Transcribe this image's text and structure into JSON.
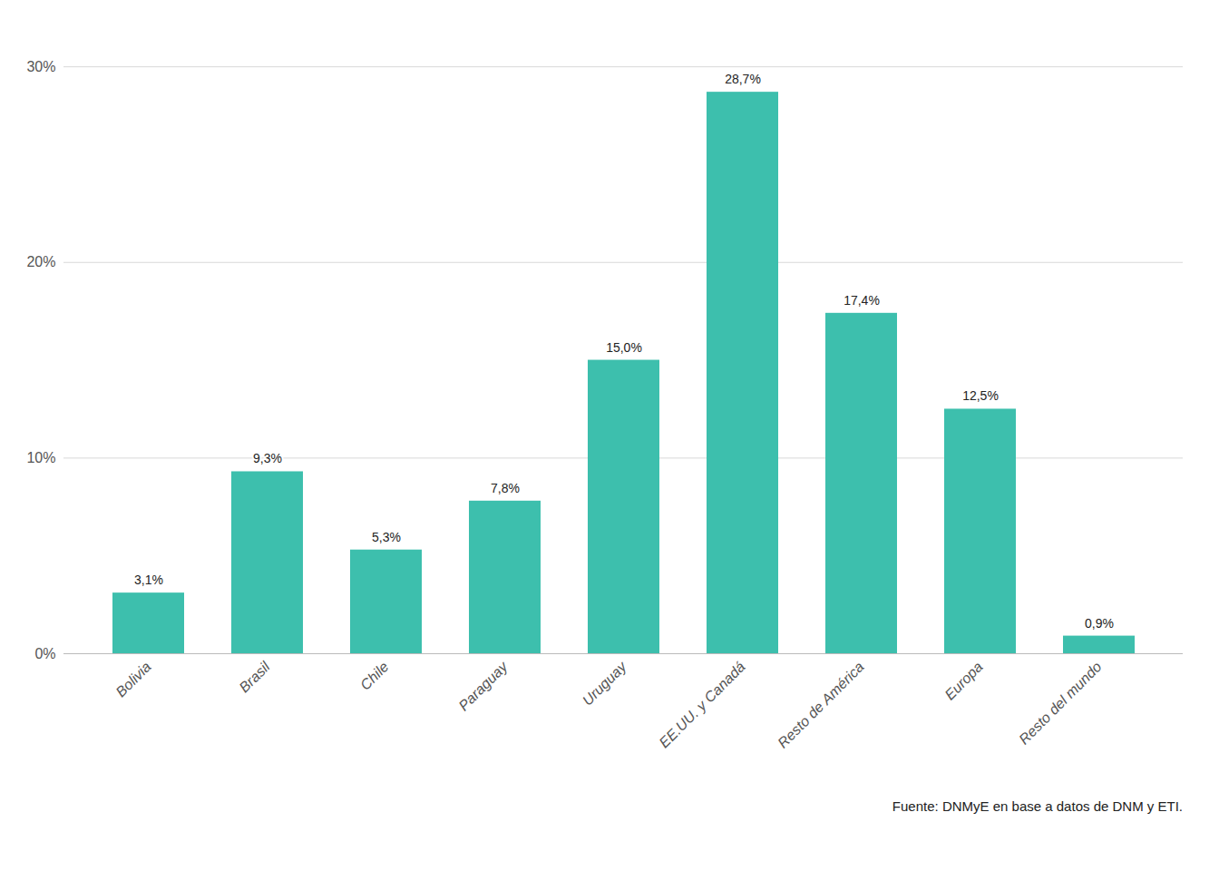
{
  "chart_data": {
    "type": "bar",
    "categories": [
      "Bolivia",
      "Brasil",
      "Chile",
      "Paraguay",
      "Uruguay",
      "EE.UU. y Canadá",
      "Resto de América",
      "Europa",
      "Resto del mundo"
    ],
    "values": [
      3.1,
      9.3,
      5.3,
      7.8,
      15.0,
      28.7,
      17.4,
      12.5,
      0.9
    ],
    "value_labels": [
      "3,1%",
      "9,3%",
      "5,3%",
      "7,8%",
      "15,0%",
      "28,7%",
      "17,4%",
      "12,5%",
      "0,9%"
    ],
    "color": "#3dbfad",
    "ylim": [
      0,
      32
    ],
    "yticks": [
      {
        "value": 0,
        "label": "0%"
      },
      {
        "value": 10,
        "label": "10%"
      },
      {
        "value": 20,
        "label": "20%"
      },
      {
        "value": 30,
        "label": "30%"
      }
    ],
    "grid": true,
    "data_labels": true,
    "caption": "Fuente: DNMyE en base a datos de DNM y ETI."
  }
}
